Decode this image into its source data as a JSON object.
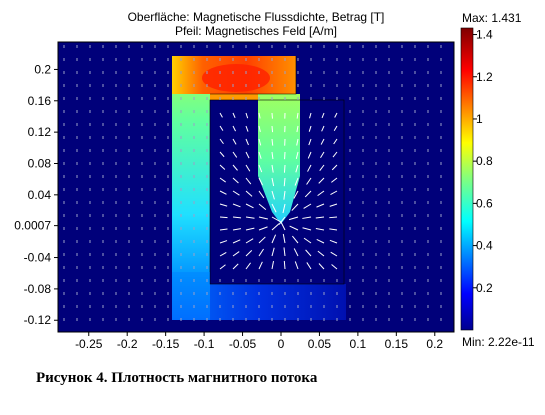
{
  "figure": {
    "title": "Oberfläche: Magnetische Flussdichte, Betrag [T]",
    "subtitle": "Pfeil: Magnetisches Feld [A/m]",
    "caption": "Рисунок 4. Плотность магнитного потока"
  },
  "colorbar": {
    "max_label": "Max: 1.431",
    "min_label": "Min: 2.22e-11",
    "ticks": [
      "1.4",
      "1.2",
      "1",
      "0.8",
      "0.6",
      "0.4",
      "0.2"
    ],
    "tick_values": [
      1.4,
      1.2,
      1.0,
      0.8,
      0.6,
      0.4,
      0.2
    ],
    "range": [
      0,
      1.431
    ],
    "colormap": "jet"
  },
  "axes": {
    "x_ticks": [
      "-0.25",
      "-0.2",
      "-0.15",
      "-0.1",
      "-0.05",
      "0",
      "0.05",
      "0.1",
      "0.15",
      "0.2"
    ],
    "x_tick_values": [
      -0.25,
      -0.2,
      -0.15,
      -0.1,
      -0.05,
      0,
      0.05,
      0.1,
      0.15,
      0.2
    ],
    "y_ticks": [
      "0.2",
      "0.16",
      "0.12",
      "0.08",
      "0.04",
      "0.0007",
      "-0.04",
      "-0.08",
      "-0.12"
    ],
    "y_tick_values": [
      0.2,
      0.16,
      0.12,
      0.08,
      0.04,
      0.0007,
      -0.04,
      -0.08,
      -0.12
    ],
    "xlim": [
      -0.29,
      0.225
    ],
    "ylim": [
      -0.135,
      0.235
    ]
  },
  "colors": {
    "background_field": "#00007a",
    "jet": [
      "#00008f",
      "#0000ff",
      "#0080ff",
      "#00ffff",
      "#80ff80",
      "#ffff00",
      "#ff8000",
      "#ff0000",
      "#800000"
    ]
  }
}
